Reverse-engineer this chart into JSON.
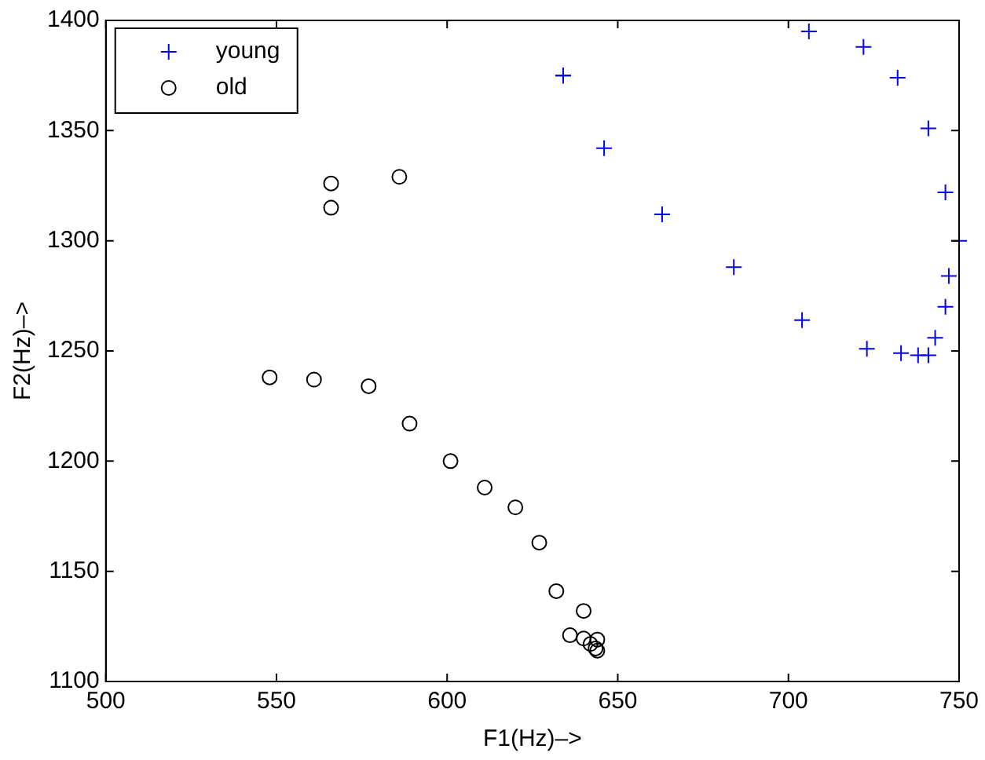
{
  "chart_data": {
    "type": "scatter",
    "xlabel": "F1(Hz)–>",
    "ylabel": "F2(Hz)–>",
    "xlim": [
      500,
      750
    ],
    "ylim": [
      1100,
      1400
    ],
    "xticks": [
      500,
      550,
      600,
      650,
      700,
      750
    ],
    "yticks": [
      1100,
      1150,
      1200,
      1250,
      1300,
      1350,
      1400
    ],
    "grid": false,
    "legend": "top left",
    "series": [
      {
        "name": "young",
        "color": "#0000ff",
        "marker": "cross",
        "x": [
          634,
          634,
          646,
          663,
          684,
          704,
          706,
          722,
          723,
          732,
          733,
          738,
          741,
          741,
          743,
          746,
          746,
          747,
          750
        ],
        "values": [
          1375,
          1375,
          1342,
          1312,
          1288,
          1264,
          1395,
          1388,
          1251,
          1374,
          1249,
          1248,
          1248,
          1351,
          1256,
          1322,
          1270,
          1284,
          1300
        ]
      },
      {
        "name": "old",
        "color": "#000000",
        "marker": "circle",
        "x": [
          548,
          561,
          577,
          566,
          566,
          586,
          589,
          601,
          611,
          620,
          627,
          632,
          640,
          636,
          640,
          644,
          642,
          643.5,
          644
        ],
        "values": [
          1238,
          1237,
          1234,
          1326,
          1315,
          1329,
          1217,
          1200,
          1188,
          1179,
          1163,
          1141,
          1132,
          1121,
          1119.5,
          1119,
          1117,
          1115,
          1114
        ]
      }
    ]
  }
}
